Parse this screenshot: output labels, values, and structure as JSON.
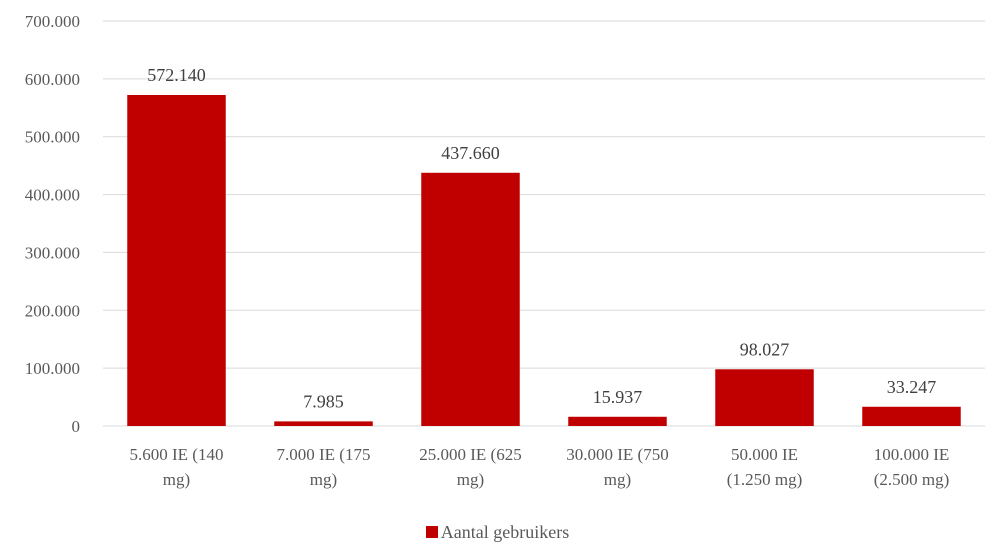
{
  "chart_data": {
    "type": "bar",
    "categories": [
      [
        "5.600 IE (140",
        "mg)"
      ],
      [
        "7.000 IE (175",
        "mg)"
      ],
      [
        "25.000 IE (625",
        "mg)"
      ],
      [
        "30.000 IE (750",
        "mg)"
      ],
      [
        "50.000 IE",
        "(1.250 mg)"
      ],
      [
        "100.000 IE",
        "(2.500 mg)"
      ]
    ],
    "series": [
      {
        "name": "Aantal gebruikers",
        "values": [
          572140,
          7985,
          437660,
          15937,
          98027,
          33247
        ],
        "labels": [
          "572.140",
          "7.985",
          "437.660",
          "15.937",
          "98.027",
          "33.247"
        ],
        "color": "#C00000"
      }
    ],
    "ylim": [
      0,
      700000
    ],
    "yticks": [
      0,
      100000,
      200000,
      300000,
      400000,
      500000,
      600000,
      700000
    ],
    "ytick_labels": [
      "0",
      "100.000",
      "200.000",
      "300.000",
      "400.000",
      "500.000",
      "600.000",
      "700.000"
    ],
    "grid": true,
    "gridline_color": "#D9D9D9",
    "legend_position": "bottom"
  }
}
